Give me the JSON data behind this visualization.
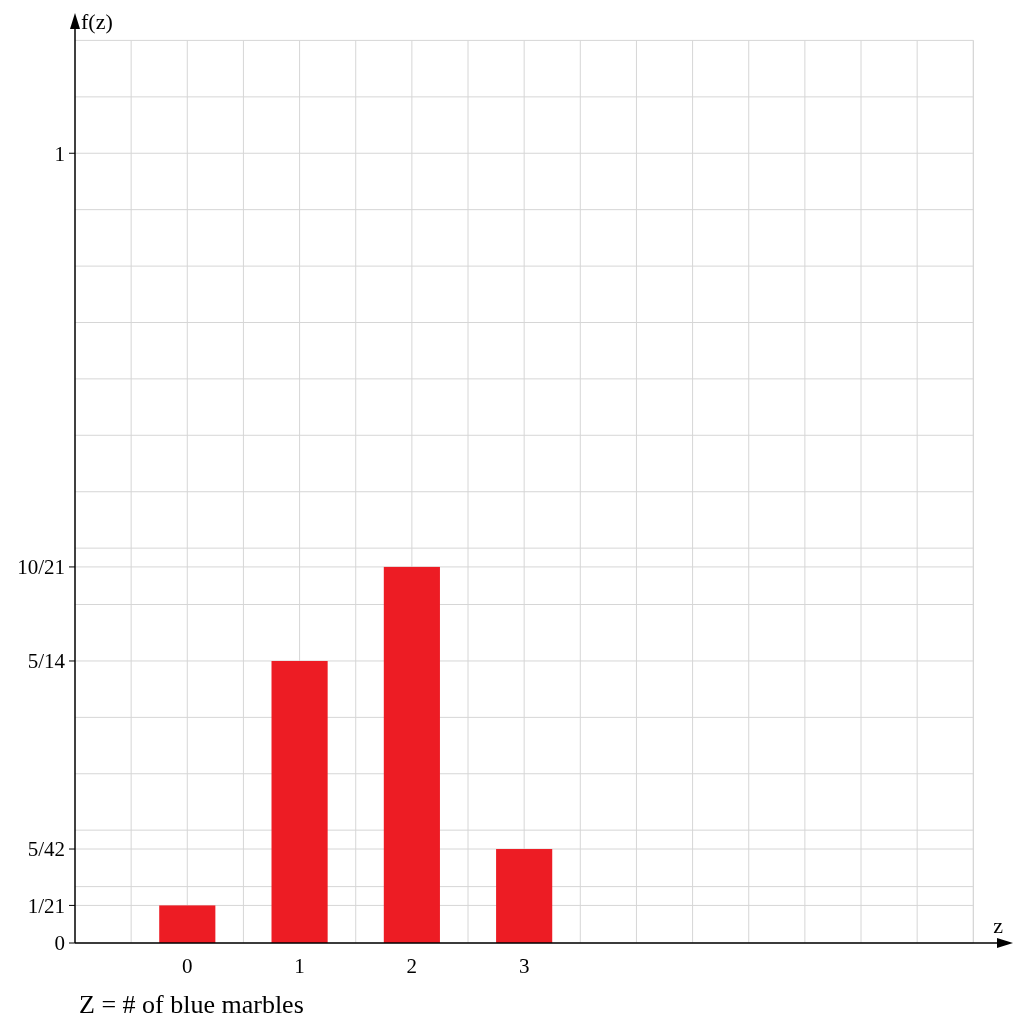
{
  "chart_data": {
    "type": "bar",
    "xlabel": "z",
    "ylabel": "f(z)",
    "annotations": [
      "Z = # of blue marbles"
    ],
    "x": [
      0,
      1,
      2,
      3
    ],
    "values": [
      0.0476,
      0.3571,
      0.4762,
      0.119
    ],
    "color": "#ed1c24",
    "xlim": [
      -1,
      7.3
    ],
    "ylim": [
      0,
      1.17
    ],
    "xticks": [
      {
        "value": -0.5,
        "label": null
      },
      0,
      {
        "value": 0.5,
        "label": null
      },
      1,
      {
        "value": 1.5,
        "label": null
      },
      2,
      {
        "value": 2.5,
        "label": null
      },
      3,
      {
        "value": 3.5,
        "label": null
      },
      {
        "value": 4,
        "label": null
      },
      {
        "value": 4.5,
        "label": null
      },
      {
        "value": 5,
        "label": null
      },
      {
        "value": 5.5,
        "label": null
      },
      {
        "value": 6,
        "label": null
      },
      {
        "value": 6.5,
        "label": null
      },
      {
        "value": 7,
        "label": null
      }
    ],
    "yticks": [
      0,
      {
        "value": 0.0476,
        "label": "1/21"
      },
      {
        "value": 0.0714,
        "label": null
      },
      {
        "value": 0.119,
        "label": "5/42"
      },
      {
        "value": 0.1429,
        "label": null
      },
      {
        "value": 0.2143,
        "label": null
      },
      {
        "value": 0.2857,
        "label": null
      },
      {
        "value": 0.3571,
        "label": "5/14"
      },
      {
        "value": 0.4286,
        "label": null
      },
      {
        "value": 0.4762,
        "label": "10/21"
      },
      {
        "value": 0.5,
        "label": null
      },
      {
        "value": 0.5714,
        "label": null
      },
      {
        "value": 0.6429,
        "label": null
      },
      {
        "value": 0.7143,
        "label": null
      },
      {
        "value": 0.7857,
        "label": null
      },
      {
        "value": 0.8571,
        "label": null
      },
      {
        "value": 0.9286,
        "label": null
      },
      1,
      {
        "value": 1.0714,
        "label": null
      },
      {
        "value": 1.1429,
        "label": null
      }
    ],
    "grid": true
  }
}
